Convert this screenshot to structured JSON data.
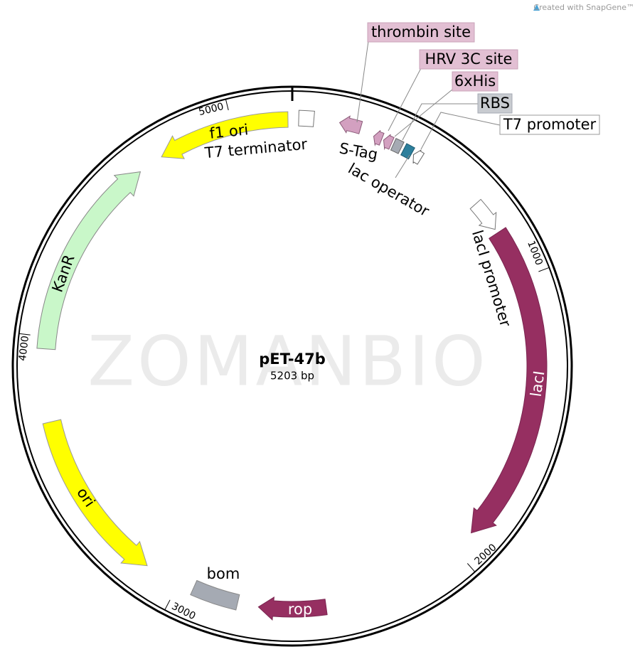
{
  "badge": "Created with SnapGene™",
  "plasmid": {
    "name": "pET-47b",
    "size": "5203 bp"
  },
  "watermark": "ZOMANBIO",
  "ticks": [
    "1000",
    "2000",
    "3000",
    "4000",
    "5000"
  ],
  "features": {
    "thrombin_site": "thrombin site",
    "hrv_3c_site": "HRV 3C site",
    "his_tag": "6xHis",
    "rbs": "RBS",
    "t7_promoter": "T7 promoter",
    "s_tag": "S-Tag",
    "lac_operator": "lac operator",
    "laci_promoter": "lacI promoter",
    "laci": "lacI",
    "rop": "rop",
    "bom": "bom",
    "ori": "ori",
    "kanr": "KanR",
    "f1_ori": "f1 ori",
    "t7_terminator": "T7 terminator"
  }
}
